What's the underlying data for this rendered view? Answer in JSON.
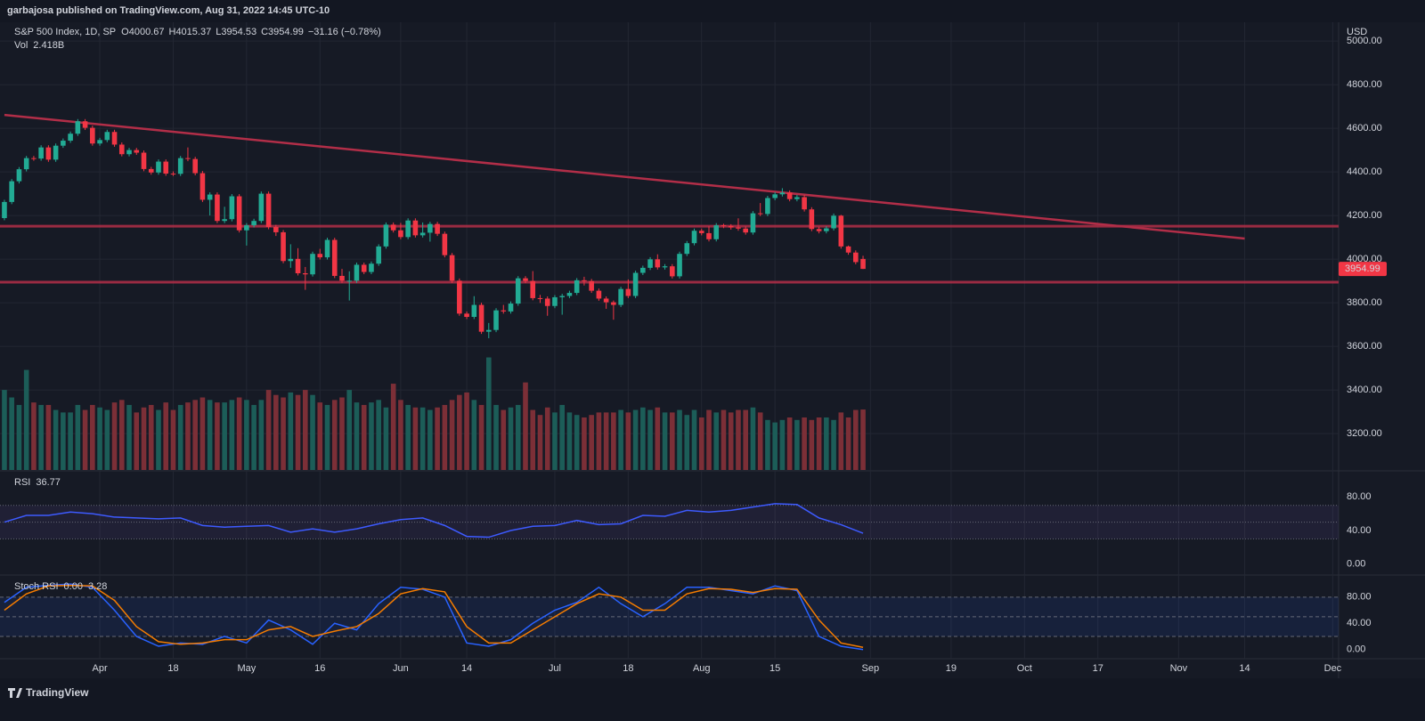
{
  "header": {
    "text": "garbajosa published on TradingView.com, Aug 31, 2022 14:45 UTC-10"
  },
  "footer": {
    "brand": "TradingView"
  },
  "chart_data": [
    {
      "type": "candlestick",
      "title": "S&P 500 Index, 1D, SP",
      "ohlc_letters": [
        "O",
        "H",
        "L",
        "C"
      ],
      "change": "−31.16 (−0.78%)",
      "axis_label": "USD",
      "volume_name": "Vol",
      "volume_label": "2.418B",
      "up_color": "#22ab94",
      "down_color": "#f23645",
      "volume_up_color": "#1c5d58",
      "volume_down_color": "#7c2f37",
      "line_color": "#b22e48",
      "grid": true,
      "xlim": [
        -0.6,
        181.8
      ],
      "ylim": [
        3033,
        5086
      ],
      "volume_ylim": [
        0,
        17.9
      ],
      "yticks": [
        {
          "value": 3200,
          "label": "3200.00"
        },
        {
          "value": 3400,
          "label": "3400.00"
        },
        {
          "value": 3600,
          "label": "3600.00"
        },
        {
          "value": 3800,
          "label": "3800.00"
        },
        {
          "value": 4000,
          "label": "4000.00"
        },
        {
          "value": 4200,
          "label": "4200.00"
        },
        {
          "value": 4400,
          "label": "4400.00"
        },
        {
          "value": 4600,
          "label": "4600.00"
        },
        {
          "value": 4800,
          "label": "4800.00"
        },
        {
          "value": 5000,
          "label": "5000.00"
        }
      ],
      "xticks": [
        {
          "value": 13,
          "label": "Apr"
        },
        {
          "value": 23,
          "label": "18"
        },
        {
          "value": 33,
          "label": "May"
        },
        {
          "value": 43,
          "label": "16"
        },
        {
          "value": 54,
          "label": "Jun"
        },
        {
          "value": 63,
          "label": "14"
        },
        {
          "value": 75,
          "label": "Jul"
        },
        {
          "value": 85,
          "label": "18"
        },
        {
          "value": 95,
          "label": "Aug"
        },
        {
          "value": 105,
          "label": "15"
        },
        {
          "value": 118,
          "label": "Sep"
        },
        {
          "value": 129,
          "label": "19"
        },
        {
          "value": 139,
          "label": "Oct"
        },
        {
          "value": 149,
          "label": "17"
        },
        {
          "value": 160,
          "label": "Nov"
        },
        {
          "value": 169,
          "label": "14"
        },
        {
          "value": 181,
          "label": "Dec"
        }
      ],
      "trendline": {
        "x": [
          0,
          169
        ],
        "values": [
          4661,
          4094
        ]
      },
      "levels": [
        4151,
        3894
      ],
      "candles": [
        [
          4188,
          4272,
          4178,
          4262
        ],
        [
          4262,
          4367,
          4252,
          4357
        ],
        [
          4357,
          4422,
          4347,
          4412
        ],
        [
          4412,
          4473,
          4402,
          4463
        ],
        [
          4463,
          4473,
          4451,
          4461
        ],
        [
          4461,
          4522,
          4451,
          4512
        ],
        [
          4512,
          4522,
          4446,
          4456
        ],
        [
          4456,
          4530,
          4446,
          4520
        ],
        [
          4520,
          4553,
          4510,
          4543
        ],
        [
          4543,
          4585,
          4533,
          4575
        ],
        [
          4575,
          4642,
          4565,
          4632
        ],
        [
          4632,
          4642,
          4592,
          4602
        ],
        [
          4602,
          4612,
          4520,
          4530
        ],
        [
          4530,
          4556,
          4520,
          4546
        ],
        [
          4546,
          4593,
          4536,
          4583
        ],
        [
          4583,
          4593,
          4515,
          4525
        ],
        [
          4525,
          4535,
          4471,
          4481
        ],
        [
          4481,
          4510,
          4471,
          4500
        ],
        [
          4500,
          4510,
          4478,
          4488
        ],
        [
          4488,
          4498,
          4403,
          4413
        ],
        [
          4413,
          4423,
          4387,
          4397
        ],
        [
          4397,
          4457,
          4387,
          4447
        ],
        [
          4447,
          4457,
          4382,
          4392
        ],
        [
          4392,
          4402,
          4381,
          4391
        ],
        [
          4391,
          4473,
          4381,
          4463
        ],
        [
          4463,
          4512,
          4449,
          4459
        ],
        [
          4459,
          4469,
          4384,
          4394
        ],
        [
          4394,
          4404,
          4262,
          4272
        ],
        [
          4272,
          4306,
          4200,
          4296
        ],
        [
          4296,
          4306,
          4165,
          4175
        ],
        [
          4175,
          4240,
          4165,
          4183
        ],
        [
          4183,
          4298,
          4173,
          4288
        ],
        [
          4288,
          4298,
          4122,
          4132
        ],
        [
          4132,
          4165,
          4062,
          4155
        ],
        [
          4155,
          4185,
          4145,
          4175
        ],
        [
          4175,
          4310,
          4165,
          4300
        ],
        [
          4300,
          4310,
          4137,
          4147
        ],
        [
          4147,
          4157,
          4106,
          4123
        ],
        [
          4123,
          4133,
          3981,
          3991
        ],
        [
          3991,
          4068,
          3960,
          4001
        ],
        [
          4001,
          4050,
          3925,
          3935
        ],
        [
          3935,
          3964,
          3859,
          3930
        ],
        [
          3930,
          4034,
          3920,
          4024
        ],
        [
          4024,
          4047,
          3998,
          4008
        ],
        [
          4008,
          4098,
          3998,
          4088
        ],
        [
          4088,
          4098,
          3913,
          3923
        ],
        [
          3923,
          3955,
          3891,
          3901
        ],
        [
          3901,
          3944,
          3810,
          3901
        ],
        [
          3901,
          3984,
          3891,
          3974
        ],
        [
          3974,
          3984,
          3931,
          3941
        ],
        [
          3941,
          3989,
          3931,
          3979
        ],
        [
          3979,
          4068,
          3969,
          4058
        ],
        [
          4058,
          4168,
          4048,
          4158
        ],
        [
          4158,
          4168,
          4122,
          4132
        ],
        [
          4132,
          4166,
          4091,
          4101
        ],
        [
          4101,
          4187,
          4091,
          4177
        ],
        [
          4177,
          4187,
          4099,
          4109
        ],
        [
          4109,
          4168,
          4099,
          4121
        ],
        [
          4121,
          4171,
          4080,
          4161
        ],
        [
          4161,
          4171,
          4106,
          4116
        ],
        [
          4116,
          4126,
          4008,
          4018
        ],
        [
          4018,
          4028,
          3891,
          3901
        ],
        [
          3901,
          3911,
          3740,
          3750
        ],
        [
          3750,
          3760,
          3725,
          3735
        ],
        [
          3735,
          3830,
          3725,
          3790
        ],
        [
          3790,
          3800,
          3657,
          3667
        ],
        [
          3667,
          3707,
          3637,
          3675
        ],
        [
          3675,
          3775,
          3665,
          3765
        ],
        [
          3765,
          3790,
          3750,
          3760
        ],
        [
          3760,
          3806,
          3750,
          3796
        ],
        [
          3796,
          3922,
          3786,
          3912
        ],
        [
          3912,
          3922,
          3890,
          3900
        ],
        [
          3900,
          3945,
          3811,
          3821
        ],
        [
          3821,
          3836,
          3799,
          3819
        ],
        [
          3819,
          3829,
          3740,
          3785
        ],
        [
          3785,
          3835,
          3775,
          3825
        ],
        [
          3825,
          3841,
          3745,
          3831
        ],
        [
          3831,
          3855,
          3821,
          3845
        ],
        [
          3845,
          3913,
          3835,
          3903
        ],
        [
          3903,
          3919,
          3879,
          3899
        ],
        [
          3899,
          3909,
          3845,
          3855
        ],
        [
          3855,
          3865,
          3809,
          3819
        ],
        [
          3819,
          3829,
          3772,
          3802
        ],
        [
          3802,
          3810,
          3722,
          3790
        ],
        [
          3790,
          3873,
          3780,
          3863
        ],
        [
          3863,
          3907,
          3821,
          3831
        ],
        [
          3831,
          3947,
          3821,
          3937
        ],
        [
          3937,
          3970,
          3927,
          3960
        ],
        [
          3960,
          4009,
          3950,
          3999
        ],
        [
          3999,
          4022,
          3952,
          3962
        ],
        [
          3962,
          3977,
          3952,
          3967
        ],
        [
          3967,
          3977,
          3911,
          3921
        ],
        [
          3921,
          4034,
          3911,
          4024
        ],
        [
          4024,
          4083,
          4014,
          4073
        ],
        [
          4073,
          4140,
          4063,
          4130
        ],
        [
          4130,
          4140,
          4109,
          4119
        ],
        [
          4119,
          4150,
          4081,
          4091
        ],
        [
          4091,
          4165,
          4081,
          4155
        ],
        [
          4155,
          4162,
          4142,
          4152
        ],
        [
          4152,
          4160,
          4135,
          4145
        ],
        [
          4145,
          4187,
          4130,
          4140
        ],
        [
          4140,
          4150,
          4112,
          4122
        ],
        [
          4122,
          4220,
          4112,
          4210
        ],
        [
          4210,
          4257,
          4197,
          4207
        ],
        [
          4207,
          4290,
          4197,
          4280
        ],
        [
          4280,
          4307,
          4270,
          4297
        ],
        [
          4297,
          4325,
          4287,
          4305
        ],
        [
          4305,
          4315,
          4265,
          4275
        ],
        [
          4275,
          4294,
          4265,
          4284
        ],
        [
          4284,
          4294,
          4218,
          4228
        ],
        [
          4228,
          4238,
          4128,
          4138
        ],
        [
          4138,
          4148,
          4118,
          4128
        ],
        [
          4128,
          4151,
          4118,
          4141
        ],
        [
          4141,
          4209,
          4131,
          4199
        ],
        [
          4199,
          4203,
          4048,
          4058
        ],
        [
          4058,
          4062,
          4020,
          4030
        ],
        [
          4030,
          4040,
          3976,
          3986.15
        ],
        [
          4000.67,
          4015.37,
          3954.53,
          3954.99
        ]
      ],
      "volume": [
        3.2,
        2.9,
        2.6,
        4.0,
        2.7,
        2.6,
        2.6,
        2.4,
        2.3,
        2.3,
        2.6,
        2.4,
        2.6,
        2.5,
        2.4,
        2.7,
        2.8,
        2.6,
        2.3,
        2.5,
        2.6,
        2.4,
        2.7,
        2.4,
        2.6,
        2.7,
        2.8,
        2.9,
        2.8,
        2.7,
        2.7,
        2.8,
        2.9,
        2.8,
        2.6,
        2.8,
        3.2,
        3.0,
        2.9,
        3.1,
        3.0,
        3.2,
        3.0,
        2.7,
        2.6,
        2.8,
        2.9,
        3.2,
        2.7,
        2.6,
        2.7,
        2.8,
        2.5,
        3.45,
        2.8,
        2.6,
        2.5,
        2.5,
        2.4,
        2.5,
        2.6,
        2.8,
        3.0,
        3.1,
        2.8,
        2.6,
        4.5,
        2.6,
        2.4,
        2.5,
        2.6,
        3.5,
        2.4,
        2.2,
        2.5,
        2.3,
        2.6,
        2.3,
        2.2,
        2.1,
        2.2,
        2.3,
        2.3,
        2.3,
        2.4,
        2.3,
        2.4,
        2.5,
        2.4,
        2.5,
        2.3,
        2.3,
        2.4,
        2.2,
        2.4,
        2.1,
        2.4,
        2.3,
        2.4,
        2.3,
        2.4,
        2.4,
        2.5,
        2.3,
        2.0,
        1.9,
        2.0,
        2.1,
        2.0,
        2.1,
        2.0,
        2.1,
        2.1,
        2.0,
        2.3,
        2.1,
        2.4,
        2.418
      ]
    },
    {
      "type": "line",
      "title": "RSI",
      "ylim": [
        -12,
        109
      ],
      "yticks": [
        {
          "value": 0,
          "label": "0.00"
        },
        {
          "value": 40,
          "label": "40.00"
        },
        {
          "value": 80,
          "label": "80.00"
        }
      ],
      "bands": [
        30,
        50,
        70
      ],
      "band_color": "#7e57c2",
      "x": [
        0,
        3,
        6,
        9,
        12,
        15,
        18,
        21,
        24,
        27,
        30,
        33,
        36,
        39,
        42,
        45,
        48,
        51,
        54,
        57,
        60,
        63,
        66,
        69,
        72,
        75,
        78,
        81,
        84,
        87,
        90,
        93,
        96,
        99,
        102,
        105,
        108,
        111,
        114,
        117
      ],
      "series": [
        {
          "color": "#3d5afe",
          "values": [
            50,
            58,
            58,
            62,
            60,
            56,
            55,
            54,
            55,
            46,
            44,
            45,
            46,
            38,
            42,
            38,
            42,
            48,
            53,
            55,
            46,
            33,
            32,
            40,
            45,
            46,
            52,
            47,
            48,
            58,
            57,
            64,
            62,
            64,
            68,
            72,
            71,
            55,
            47,
            36.77
          ]
        }
      ]
    },
    {
      "type": "line",
      "title": "Stoch RSI",
      "ylim": [
        -14,
        111
      ],
      "yticks": [
        {
          "value": 0,
          "label": "0.00"
        },
        {
          "value": 40,
          "label": "40.00"
        },
        {
          "value": 80,
          "label": "80.00"
        }
      ],
      "bands": [
        20,
        50,
        80
      ],
      "band_color": "#2962ff",
      "x": [
        0,
        3,
        6,
        9,
        12,
        15,
        18,
        21,
        24,
        27,
        30,
        33,
        36,
        39,
        42,
        45,
        48,
        51,
        54,
        57,
        60,
        63,
        66,
        69,
        72,
        75,
        78,
        81,
        84,
        87,
        90,
        93,
        96,
        99,
        102,
        105,
        108,
        111,
        114,
        117
      ],
      "series": [
        {
          "color": "#2962ff",
          "legend_label": "0.00",
          "values": [
            72,
            95,
            98,
            100,
            95,
            60,
            20,
            5,
            10,
            8,
            20,
            10,
            45,
            30,
            8,
            40,
            30,
            70,
            95,
            92,
            80,
            10,
            5,
            15,
            40,
            60,
            72,
            95,
            70,
            50,
            70,
            95,
            95,
            90,
            85,
            97,
            90,
            20,
            5,
            0
          ]
        },
        {
          "color": "#f57c00",
          "values": [
            60,
            85,
            97,
            98,
            97,
            75,
            35,
            12,
            8,
            10,
            15,
            15,
            30,
            35,
            20,
            28,
            35,
            55,
            85,
            93,
            88,
            35,
            10,
            10,
            30,
            50,
            70,
            85,
            80,
            60,
            60,
            85,
            93,
            92,
            87,
            93,
            92,
            45,
            10,
            3.28
          ]
        }
      ]
    }
  ]
}
